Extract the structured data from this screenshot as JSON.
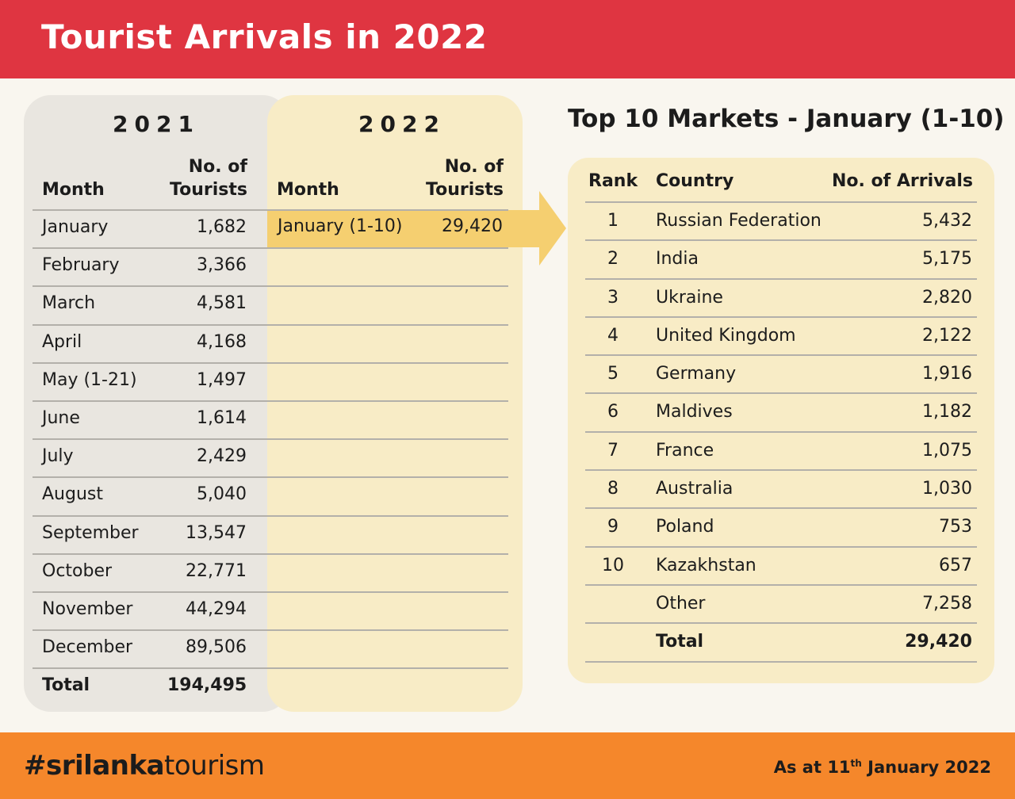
{
  "title": "Tourist Arrivals in 2022",
  "footer": {
    "hashtag_prefix": "#",
    "hashtag_bold": "srilanka",
    "hashtag_rest": "tourism",
    "as_at_prefix": "As at 11",
    "as_at_sup": "th",
    "as_at_suffix": " January 2022"
  },
  "table2021": {
    "year": "2021",
    "col_month": "Month",
    "col_tourists_1": "No. of",
    "col_tourists_2": "Tourists",
    "rows": [
      {
        "month": "January",
        "value": "1,682"
      },
      {
        "month": "February",
        "value": "3,366"
      },
      {
        "month": "March",
        "value": "4,581"
      },
      {
        "month": "April",
        "value": "4,168"
      },
      {
        "month": "May (1-21)",
        "value": "1,497"
      },
      {
        "month": "June",
        "value": "1,614"
      },
      {
        "month": "July",
        "value": "2,429"
      },
      {
        "month": "August",
        "value": "5,040"
      },
      {
        "month": "September",
        "value": "13,547"
      },
      {
        "month": "October",
        "value": "22,771"
      },
      {
        "month": "November",
        "value": "44,294"
      },
      {
        "month": "December",
        "value": "89,506"
      },
      {
        "month": "Total",
        "value": "194,495"
      }
    ]
  },
  "table2022": {
    "year": "2022",
    "col_month": "Month",
    "col_tourists_1": "No. of",
    "col_tourists_2": "Tourists",
    "rows": [
      {
        "month": "January (1-10)",
        "value": "29,420"
      }
    ]
  },
  "top10": {
    "title": "Top 10 Markets - January (1-10)",
    "col_rank": "Rank",
    "col_country": "Country",
    "col_arrivals": "No. of Arrivals",
    "rows": [
      {
        "rank": "1",
        "country": "Russian Federation",
        "arrivals": "5,432"
      },
      {
        "rank": "2",
        "country": "India",
        "arrivals": "5,175"
      },
      {
        "rank": "3",
        "country": "Ukraine",
        "arrivals": "2,820"
      },
      {
        "rank": "4",
        "country": "United Kingdom",
        "arrivals": "2,122"
      },
      {
        "rank": "5",
        "country": "Germany",
        "arrivals": "1,916"
      },
      {
        "rank": "6",
        "country": "Maldives",
        "arrivals": "1,182"
      },
      {
        "rank": "7",
        "country": "France",
        "arrivals": "1,075"
      },
      {
        "rank": "8",
        "country": "Australia",
        "arrivals": "1,030"
      },
      {
        "rank": "9",
        "country": "Poland",
        "arrivals": "753"
      },
      {
        "rank": "10",
        "country": "Kazakhstan",
        "arrivals": "657"
      },
      {
        "rank": "",
        "country": "Other",
        "arrivals": "7,258"
      },
      {
        "rank": "",
        "country": "Total",
        "arrivals": "29,420"
      }
    ]
  },
  "colors": {
    "header_red": "#df3541",
    "footer_orange": "#f5872b",
    "panel_grey": "#e9e6e0",
    "panel_cream": "#f8ecc6",
    "highlight_yellow": "#f5cf70"
  }
}
